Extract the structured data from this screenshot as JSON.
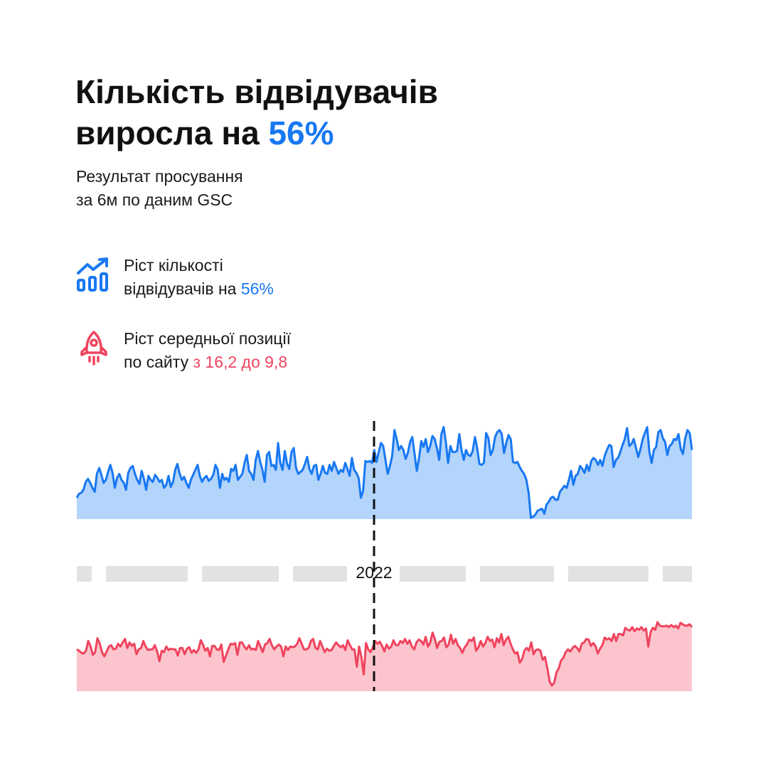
{
  "headline": {
    "line1": "Кількість відвідувачів",
    "line2_prefix": "виросла на ",
    "line2_accent": "56%"
  },
  "subtitle": {
    "line1": "Результат просування",
    "line2": "за 6м по даним GSC"
  },
  "stats": [
    {
      "icon": "growth-chart-icon",
      "line1": "Ріст кількості",
      "line2_prefix": "відвідувачів на ",
      "line2_accent": "56%",
      "accent_color": "#1878f2"
    },
    {
      "icon": "rocket-icon",
      "line1": "Ріст середньої позиції",
      "line2_prefix": "по сайту ",
      "line2_accent": "з 16,2 до 9,8",
      "accent_color": "#f0445e"
    }
  ],
  "colors": {
    "blue": "#1878f2",
    "blue_fill": "#b3d4fb",
    "red": "#f0445e",
    "red_fill": "#fcc5cd",
    "timeline": "#e2e2e2",
    "text": "#111111"
  },
  "chart_data": [
    {
      "type": "area",
      "title": "",
      "xlabel": "",
      "ylabel": "",
      "grid": false,
      "axes_shown": false,
      "marker": "2022",
      "series": [
        {
          "color": "#1878f2",
          "values": [
            20,
            24,
            25,
            28,
            36,
            39,
            35,
            30,
            26,
            44,
            50,
            43,
            35,
            38,
            46,
            53,
            45,
            30,
            40,
            44,
            38,
            35,
            28,
            45,
            50,
            52,
            44,
            38,
            34,
            47,
            39,
            28,
            42,
            38,
            36,
            43,
            40,
            36,
            38,
            30,
            33,
            42,
            31,
            36,
            48,
            54,
            44,
            38,
            41,
            35,
            30,
            38,
            43,
            48,
            53,
            42,
            36,
            40,
            42,
            37,
            39,
            43,
            53,
            48,
            30,
            44,
            38,
            40,
            36,
            49,
            47,
            53,
            38,
            41,
            44,
            55,
            63,
            47,
            44,
            38,
            58,
            67,
            56,
            48,
            36,
            63,
            66,
            52,
            53,
            48,
            75,
            55,
            48,
            67,
            54,
            49,
            66,
            70,
            50,
            44,
            46,
            48,
            54,
            61,
            49,
            44,
            52,
            53,
            38,
            44,
            52,
            45,
            44,
            53,
            47,
            56,
            50,
            44,
            48,
            46,
            55,
            49,
            42,
            60,
            48,
            45,
            40,
            20,
            27,
            57,
            56,
            57,
            55,
            68,
            56,
            66,
            75,
            72,
            58,
            44,
            52,
            62,
            88,
            79,
            68,
            72,
            68,
            59,
            65,
            76,
            81,
            64,
            47,
            60,
            77,
            71,
            79,
            66,
            72,
            82,
            79,
            70,
            58,
            84,
            91,
            76,
            55,
            72,
            66,
            66,
            67,
            84,
            68,
            58,
            68,
            63,
            62,
            67,
            81,
            70,
            54,
            53,
            55,
            85,
            80,
            63,
            68,
            81,
            86,
            88,
            84,
            65,
            75,
            83,
            79,
            56,
            55,
            56,
            51,
            47,
            44,
            38,
            25,
            0,
            1,
            3,
            7,
            8,
            9,
            4,
            13,
            16,
            20,
            21,
            18,
            18,
            26,
            29,
            32,
            30,
            38,
            47,
            33,
            42,
            44,
            52,
            49,
            45,
            53,
            47,
            57,
            60,
            58,
            53,
            58,
            52,
            62,
            68,
            73,
            72,
            51,
            58,
            60,
            66,
            73,
            79,
            90,
            72,
            74,
            79,
            70,
            61,
            69,
            79,
            85,
            91,
            66,
            55,
            68,
            71,
            86,
            88,
            80,
            76,
            63,
            72,
            74,
            79,
            78,
            84,
            69,
            64,
            80,
            88,
            85,
            68
          ]
        },
        {
          "color": "#f0445e",
          "values": [
            58,
            56,
            53,
            52,
            56,
            70,
            62,
            50,
            54,
            74,
            66,
            54,
            48,
            55,
            62,
            64,
            58,
            59,
            66,
            62,
            68,
            73,
            60,
            68,
            63,
            66,
            51,
            58,
            60,
            70,
            62,
            57,
            58,
            58,
            64,
            55,
            41,
            56,
            54,
            62,
            57,
            59,
            58,
            58,
            49,
            60,
            60,
            51,
            59,
            61,
            53,
            57,
            53,
            58,
            71,
            65,
            56,
            60,
            48,
            63,
            63,
            58,
            57,
            65,
            40,
            49,
            58,
            66,
            65,
            67,
            50,
            68,
            68,
            62,
            58,
            64,
            58,
            59,
            57,
            70,
            62,
            54,
            65,
            67,
            73,
            64,
            58,
            62,
            65,
            62,
            48,
            62,
            57,
            62,
            61,
            62,
            66,
            74,
            66,
            58,
            58,
            60,
            70,
            73,
            60,
            58,
            70,
            62,
            54,
            59,
            56,
            57,
            63,
            68,
            64,
            61,
            64,
            57,
            71,
            64,
            58,
            58,
            33,
            62,
            47,
            22,
            67,
            58,
            54,
            61,
            70,
            66,
            69,
            63,
            55,
            65,
            59,
            62,
            71,
            64,
            64,
            70,
            67,
            73,
            66,
            71,
            62,
            58,
            68,
            72,
            70,
            65,
            76,
            62,
            68,
            82,
            73,
            60,
            69,
            70,
            75,
            61,
            65,
            79,
            66,
            73,
            64,
            60,
            53,
            61,
            65,
            72,
            70,
            75,
            56,
            61,
            70,
            62,
            67,
            76,
            70,
            72,
            61,
            74,
            68,
            80,
            64,
            72,
            76,
            66,
            58,
            52,
            54,
            39,
            44,
            56,
            60,
            56,
            68,
            51,
            57,
            58,
            56,
            43,
            47,
            31,
            12,
            6,
            10,
            25,
            31,
            42,
            46,
            54,
            58,
            55,
            60,
            63,
            60,
            55,
            66,
            68,
            73,
            72,
            63,
            67,
            63,
            52,
            59,
            64,
            75,
            72,
            74,
            70,
            80,
            70,
            80,
            80,
            78,
            89,
            86,
            85,
            90,
            84,
            88,
            86,
            90,
            85,
            88,
            62,
            83,
            89,
            86,
            97,
            92,
            91,
            91,
            92,
            90,
            93,
            90,
            92,
            88,
            96,
            94,
            92,
            92,
            94,
            90
          ]
        }
      ]
    }
  ]
}
